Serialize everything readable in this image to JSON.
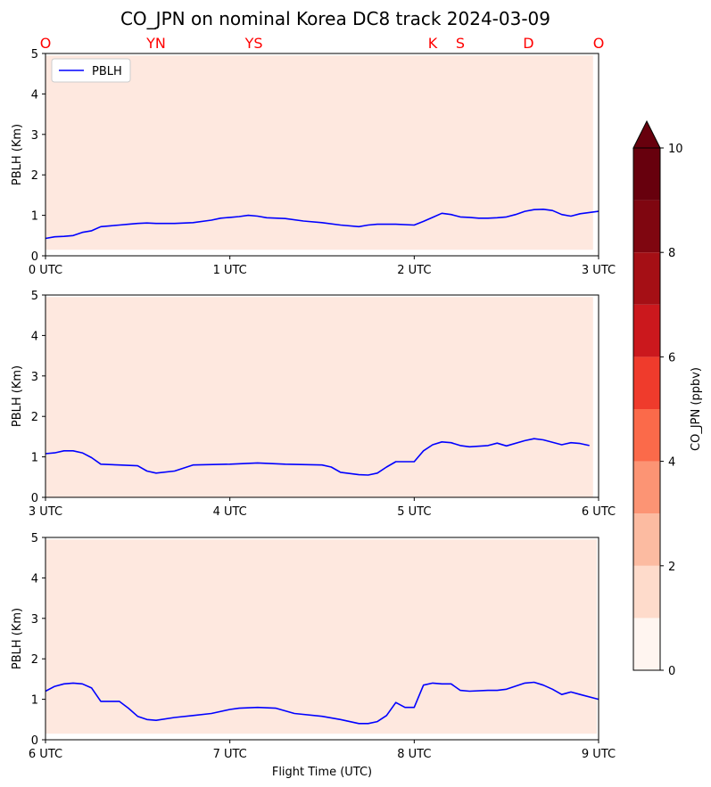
{
  "title": "CO_JPN on nominal Korea DC8 track 2024-03-09",
  "colors": {
    "pblh_line": "#0000ff",
    "waypoint_text": "#ff0000",
    "background_fill": "#fee8df",
    "colorbar_levels": [
      "#fff5f0",
      "#fedbcb",
      "#fcbba1",
      "#fc9474",
      "#fb6a4a",
      "#ef3b2c",
      "#cb181d",
      "#a50f15",
      "#7f0610",
      "#67000d"
    ]
  },
  "chart_data": [
    {
      "type": "line",
      "panel": "top",
      "series": [
        {
          "name": "PBLH",
          "x": [
            0,
            0.05,
            0.1,
            0.15,
            0.2,
            0.25,
            0.3,
            0.35,
            0.4,
            0.45,
            0.5,
            0.55,
            0.6,
            0.7,
            0.8,
            0.9,
            0.95,
            1.0,
            1.05,
            1.1,
            1.15,
            1.2,
            1.3,
            1.4,
            1.5,
            1.6,
            1.7,
            1.75,
            1.8,
            1.9,
            2.0,
            2.05,
            2.1,
            2.15,
            2.2,
            2.25,
            2.3,
            2.35,
            2.4,
            2.45,
            2.5,
            2.55,
            2.6,
            2.65,
            2.7,
            2.75,
            2.8,
            2.85,
            2.9,
            3.0
          ],
          "values": [
            0.43,
            0.47,
            0.48,
            0.5,
            0.58,
            0.62,
            0.72,
            0.74,
            0.76,
            0.78,
            0.8,
            0.81,
            0.8,
            0.8,
            0.82,
            0.88,
            0.93,
            0.95,
            0.97,
            1.0,
            0.98,
            0.94,
            0.92,
            0.86,
            0.82,
            0.76,
            0.72,
            0.76,
            0.78,
            0.78,
            0.76,
            0.85,
            0.95,
            1.05,
            1.02,
            0.96,
            0.95,
            0.93,
            0.93,
            0.94,
            0.96,
            1.02,
            1.1,
            1.14,
            1.15,
            1.12,
            1.02,
            0.98,
            1.04,
            1.1
          ]
        }
      ],
      "legend": [
        "PBLH"
      ],
      "legend_position": "upper-left",
      "xlim": [
        0,
        3
      ],
      "ylim": [
        0,
        5
      ],
      "ylabel": "PBLH (Km)",
      "xticks": [
        0,
        1,
        2,
        3
      ],
      "xtick_labels": [
        "0 UTC",
        "1 UTC",
        "2 UTC",
        "3 UTC"
      ],
      "yticks": [
        0,
        1,
        2,
        3,
        4,
        5
      ],
      "ytick_labels": [
        "0",
        "1",
        "2",
        "3",
        "4",
        "5"
      ],
      "fill_ylim": [
        0.15,
        4.95
      ],
      "fill_xmax": 2.97,
      "waypoints": [
        {
          "label": "O",
          "x": 0
        },
        {
          "label": "YN",
          "x": 0.6
        },
        {
          "label": "YS",
          "x": 1.13
        },
        {
          "label": "K",
          "x": 2.1
        },
        {
          "label": "S",
          "x": 2.25
        },
        {
          "label": "D",
          "x": 2.62
        },
        {
          "label": "O",
          "x": 3
        }
      ]
    },
    {
      "type": "line",
      "panel": "middle",
      "series": [
        {
          "name": "PBLH",
          "x": [
            3.0,
            3.05,
            3.1,
            3.15,
            3.2,
            3.25,
            3.3,
            3.4,
            3.5,
            3.55,
            3.6,
            3.7,
            3.8,
            4.0,
            4.15,
            4.3,
            4.5,
            4.55,
            4.6,
            4.7,
            4.75,
            4.8,
            4.85,
            4.9,
            5.0,
            5.05,
            5.1,
            5.15,
            5.2,
            5.25,
            5.3,
            5.4,
            5.45,
            5.5,
            5.6,
            5.65,
            5.7,
            5.8,
            5.85,
            5.9,
            5.95
          ],
          "values": [
            1.08,
            1.1,
            1.15,
            1.15,
            1.1,
            0.98,
            0.82,
            0.8,
            0.78,
            0.65,
            0.6,
            0.65,
            0.8,
            0.82,
            0.85,
            0.82,
            0.8,
            0.75,
            0.62,
            0.56,
            0.55,
            0.6,
            0.75,
            0.88,
            0.88,
            1.15,
            1.3,
            1.37,
            1.35,
            1.28,
            1.25,
            1.28,
            1.34,
            1.27,
            1.4,
            1.45,
            1.42,
            1.3,
            1.35,
            1.33,
            1.28
          ]
        }
      ],
      "xlim": [
        3,
        6
      ],
      "ylim": [
        0,
        5
      ],
      "ylabel": "PBLH (Km)",
      "xticks": [
        3,
        4,
        5,
        6
      ],
      "xtick_labels": [
        "3 UTC",
        "4 UTC",
        "5 UTC",
        "6 UTC"
      ],
      "yticks": [
        0,
        1,
        2,
        3,
        4,
        5
      ],
      "ytick_labels": [
        "0",
        "1",
        "2",
        "3",
        "4",
        "5"
      ],
      "fill_ylim": [
        0.0,
        4.95
      ],
      "fill_xmax": 5.97
    },
    {
      "type": "line",
      "panel": "bottom",
      "series": [
        {
          "name": "PBLH",
          "x": [
            6.0,
            6.05,
            6.1,
            6.15,
            6.2,
            6.25,
            6.3,
            6.35,
            6.4,
            6.45,
            6.5,
            6.55,
            6.6,
            6.7,
            6.8,
            6.9,
            7.0,
            7.05,
            7.15,
            7.25,
            7.35,
            7.5,
            7.6,
            7.7,
            7.75,
            7.8,
            7.85,
            7.9,
            7.95,
            8.0,
            8.05,
            8.1,
            8.15,
            8.2,
            8.25,
            8.3,
            8.4,
            8.45,
            8.5,
            8.6,
            8.65,
            8.7,
            8.75,
            8.8,
            8.85,
            8.9,
            9.0
          ],
          "values": [
            1.2,
            1.32,
            1.38,
            1.4,
            1.38,
            1.28,
            0.95,
            0.95,
            0.95,
            0.78,
            0.58,
            0.5,
            0.48,
            0.55,
            0.6,
            0.65,
            0.75,
            0.78,
            0.8,
            0.78,
            0.65,
            0.58,
            0.5,
            0.4,
            0.4,
            0.45,
            0.6,
            0.92,
            0.8,
            0.8,
            1.35,
            1.4,
            1.38,
            1.38,
            1.22,
            1.2,
            1.22,
            1.22,
            1.25,
            1.4,
            1.42,
            1.35,
            1.25,
            1.12,
            1.18,
            1.12,
            1.0
          ]
        }
      ],
      "xlim": [
        6,
        9
      ],
      "ylim": [
        0,
        5
      ],
      "ylabel": "PBLH (Km)",
      "xlabel": "Flight Time (UTC)",
      "xticks": [
        6,
        7,
        8,
        9
      ],
      "xtick_labels": [
        "6 UTC",
        "7 UTC",
        "8 UTC",
        "9 UTC"
      ],
      "yticks": [
        0,
        1,
        2,
        3,
        4,
        5
      ],
      "ytick_labels": [
        "0",
        "1",
        "2",
        "3",
        "4",
        "5"
      ],
      "fill_ylim": [
        0.15,
        4.95
      ],
      "fill_xmax": 8.99
    },
    {
      "type": "heatmap",
      "panel": "colorbar",
      "label": "CO_JPN (ppbv)",
      "range": [
        0,
        10
      ],
      "levels": [
        0,
        1,
        2,
        3,
        4,
        5,
        6,
        7,
        8,
        9,
        10
      ],
      "ticks": [
        0,
        2,
        4,
        6,
        8,
        10
      ],
      "tick_labels": [
        "0",
        "2",
        "4",
        "6",
        "8",
        "10"
      ],
      "extend": "max"
    }
  ]
}
